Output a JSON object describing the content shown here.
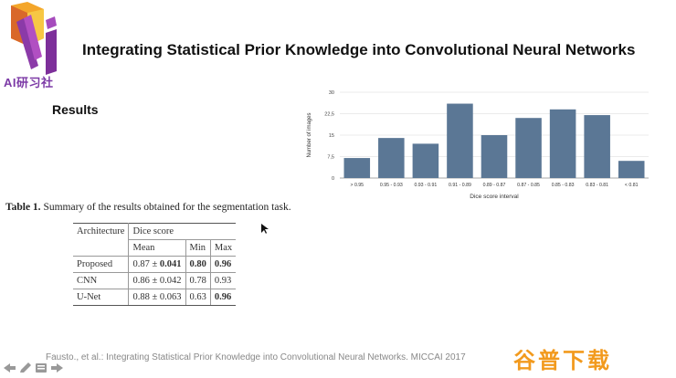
{
  "logo": {
    "text": "AI研习社"
  },
  "slide": {
    "title": "Integrating Statistical Prior Knowledge into Convolutional Neural Networks",
    "section": "Results"
  },
  "chart_data": {
    "type": "bar",
    "xlabel": "Dice score interval",
    "ylabel": "Number of images",
    "ylim": [
      0,
      30
    ],
    "yticks": [
      "0",
      "7,5",
      "15",
      "22,5",
      "30"
    ],
    "categories": [
      "> 0.95",
      "0.95 - 0.93",
      "0.93 - 0.91",
      "0.91 - 0.89",
      "0.89 - 0.87",
      "0.87 - 0.85",
      "0.85 - 0.83",
      "0.83 - 0.81",
      "< 0.81"
    ],
    "values": [
      7,
      14,
      12,
      26,
      15,
      21,
      24,
      22,
      6
    ],
    "bar_color": "#5b7795",
    "grid": true
  },
  "table": {
    "caption_label": "Table 1.",
    "caption_text": "Summary of the results obtained for the segmentation task.",
    "header_arch": "Architecture",
    "header_dice": "Dice score",
    "sub_mean": "Mean",
    "sub_min": "Min",
    "sub_max": "Max",
    "rows": [
      {
        "arch": "Proposed",
        "mean_a": "0.87 ± ",
        "mean_b": "0.041",
        "min": "0.80",
        "max": "0.96"
      },
      {
        "arch": "CNN",
        "mean_a": "0.86 ± 0.042",
        "mean_b": "",
        "min": "0.78",
        "max": "0.93"
      },
      {
        "arch": "U-Net",
        "mean_a": "0.88 ± 0.063",
        "mean_b": "",
        "min": "0.63",
        "max": "0.96"
      }
    ]
  },
  "footer": {
    "citation": "Fausto., et al.: Integrating Statistical Prior Knowledge into Convolutional Neural Networks. MICCAI 2017"
  },
  "watermark": {
    "text": "谷普下载"
  }
}
